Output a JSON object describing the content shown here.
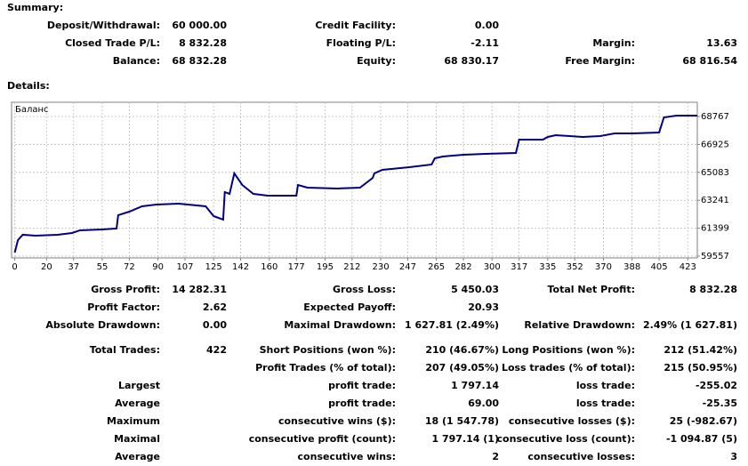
{
  "summary": {
    "title": "Summary:",
    "rows": [
      [
        "Deposit/Withdrawal:",
        "60 000.00",
        "Credit Facility:",
        "0.00",
        null,
        null
      ],
      [
        "Closed Trade P/L:",
        "8 832.28",
        "Floating P/L:",
        "-2.11",
        "Margin:",
        "13.63"
      ],
      [
        "Balance:",
        "68 832.28",
        "Equity:",
        "68 830.17",
        "Free Margin:",
        "68 816.54"
      ]
    ]
  },
  "details": {
    "title": "Details:",
    "rows": [
      [
        "Gross Profit:",
        "14 282.31",
        "Gross Loss:",
        "5 450.03",
        "Total Net Profit:",
        "8 832.28"
      ],
      [
        "Profit Factor:",
        "2.62",
        "Expected Payoff:",
        "20.93",
        null,
        null
      ],
      [
        "Absolute Drawdown:",
        "0.00",
        "Maximal Drawdown:",
        "1 627.81 (2.49%)",
        "Relative Drawdown:",
        "2.49% (1 627.81)"
      ],
      [
        "Total Trades:",
        "422",
        "Short Positions (won %):",
        "210 (46.67%)",
        "Long Positions (won %):",
        "212 (51.42%)"
      ],
      [
        null,
        null,
        "Profit Trades (% of total):",
        "207 (49.05%)",
        "Loss trades (% of total):",
        "215 (50.95%)"
      ],
      [
        "Largest",
        null,
        "profit trade:",
        "1 797.14",
        "loss trade:",
        "-255.02"
      ],
      [
        "Average",
        null,
        "profit trade:",
        "69.00",
        "loss trade:",
        "-25.35"
      ],
      [
        "Maximum",
        null,
        "consecutive wins ($):",
        "18 (1 547.78)",
        "consecutive losses ($):",
        "25 (-982.67)"
      ],
      [
        "Maximal",
        null,
        "consecutive profit (count):",
        "1 797.14 (1)",
        "consecutive loss (count):",
        "-1 094.87 (5)"
      ],
      [
        "Average",
        null,
        "consecutive wins:",
        "2",
        "consecutive losses:",
        "3"
      ]
    ]
  },
  "chart_data": {
    "type": "line",
    "grid": true,
    "x": [
      0,
      2,
      5,
      13,
      27,
      36,
      41,
      55,
      64,
      65,
      72,
      80,
      89,
      103,
      120,
      125,
      131,
      132,
      135,
      138,
      143,
      150,
      159,
      177,
      178,
      184,
      203,
      217,
      225,
      226,
      231,
      248,
      262,
      264,
      269,
      282,
      296,
      315,
      317,
      332,
      335,
      340,
      357,
      368,
      377,
      388,
      405,
      408,
      416,
      429
    ],
    "series": [
      {
        "name": "Баланс",
        "color": "#000080",
        "values": [
          59793,
          60615,
          60967,
          60908,
          60967,
          61083,
          61260,
          61318,
          61377,
          62257,
          62490,
          62843,
          62960,
          63019,
          62843,
          62198,
          61963,
          63781,
          63664,
          65013,
          64251,
          63664,
          63547,
          63547,
          64251,
          64075,
          64016,
          64075,
          64720,
          65013,
          65247,
          65424,
          65600,
          66010,
          66128,
          66245,
          66304,
          66362,
          67242,
          67242,
          67418,
          67535,
          67418,
          67477,
          67653,
          67653,
          67711,
          68708,
          68826,
          68826
        ]
      }
    ],
    "xlim": [
      -2,
      429
    ],
    "xticks": [
      0,
      20,
      37,
      55,
      72,
      90,
      107,
      125,
      142,
      160,
      177,
      195,
      212,
      230,
      247,
      265,
      282,
      300,
      317,
      335,
      352,
      370,
      388,
      405,
      423
    ],
    "ylim": [
      59440,
      69705
    ],
    "yticks": [
      59557,
      61399,
      63241,
      65083,
      66925,
      68767
    ]
  }
}
